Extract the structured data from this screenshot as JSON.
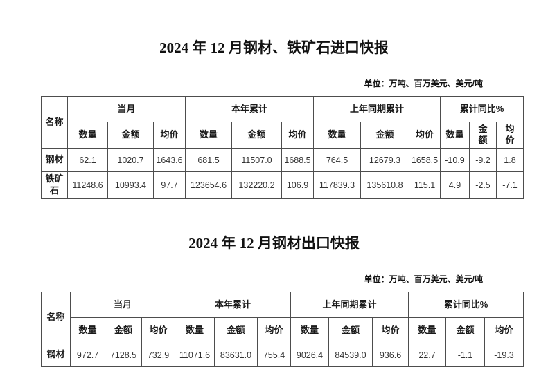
{
  "colors": {
    "text": "#1a1a1a",
    "border": "#4d4d4d",
    "background": "#ffffff"
  },
  "sections": [
    {
      "title": "2024 年 12 月钢材、铁矿石进口快报",
      "units_note": "单位：万吨、百万美元、美元/吨",
      "table": {
        "corner_header": "名称",
        "column_groups": [
          "当月",
          "本年累计",
          "上年同期累计",
          "累计同比%"
        ],
        "sub_headers": [
          "数量",
          "金额",
          "均价"
        ],
        "rows": [
          {
            "name": "钢材",
            "values": [
              "62.1",
              "1020.7",
              "1643.6",
              "681.5",
              "11507.0",
              "1688.5",
              "764.5",
              "12679.3",
              "1658.5",
              "-10.9",
              "-9.2",
              "1.8"
            ]
          },
          {
            "name": "铁矿石",
            "values": [
              "11248.6",
              "10993.4",
              "97.7",
              "123654.6",
              "132220.2",
              "106.9",
              "117839.3",
              "135610.8",
              "115.1",
              "4.9",
              "-2.5",
              "-7.1"
            ]
          }
        ]
      }
    },
    {
      "title": "2024 年 12 月钢材出口快报",
      "units_note": "单位：万吨、百万美元、美元/吨",
      "table": {
        "corner_header": "名称",
        "column_groups": [
          "当月",
          "本年累计",
          "上年同期累计",
          "累计同比%"
        ],
        "sub_headers": [
          "数量",
          "金额",
          "均价"
        ],
        "rows": [
          {
            "name": "钢材",
            "values": [
              "972.7",
              "7128.5",
              "732.9",
              "11071.6",
              "83631.0",
              "755.4",
              "9026.4",
              "84539.0",
              "936.6",
              "22.7",
              "-1.1",
              "-19.3"
            ]
          }
        ]
      }
    }
  ]
}
